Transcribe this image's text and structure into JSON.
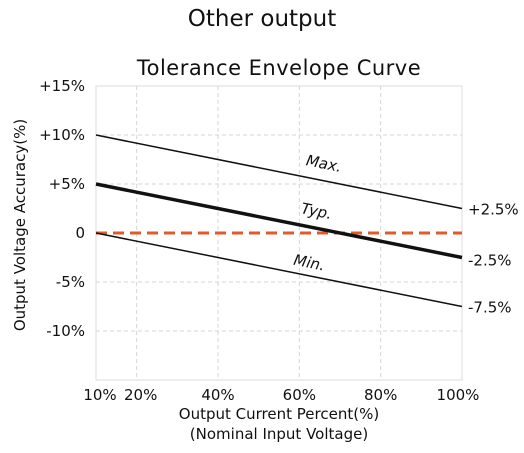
{
  "header": {
    "title": "Other output"
  },
  "chart_data": {
    "type": "line",
    "title": "Tolerance Envelope Curve",
    "xlabel": "Output Current Percent(%)",
    "xlabel2": "(Nominal Input Voltage)",
    "ylabel": "Output Voltage Accuracy(%)",
    "xlim": [
      10,
      100
    ],
    "ylim": [
      -15,
      15
    ],
    "x_ticks": [
      10,
      20,
      40,
      60,
      80,
      100
    ],
    "x_tick_labels": [
      "10%",
      "20%",
      "40%",
      "60%",
      "80%",
      "100%"
    ],
    "y_ticks": [
      15,
      10,
      5,
      0,
      -5,
      -10
    ],
    "y_tick_labels": [
      "+15%",
      "+10%",
      "+5%",
      "0",
      "-5%",
      "-10%"
    ],
    "grid": true,
    "series": [
      {
        "name": "Max.",
        "x": [
          10,
          100
        ],
        "y": [
          10,
          2.5
        ],
        "end_label": "+2.5%",
        "color": "#111111",
        "weight": "thin"
      },
      {
        "name": "Typ.",
        "x": [
          10,
          100
        ],
        "y": [
          5,
          -2.5
        ],
        "end_label": "-2.5%",
        "color": "#111111",
        "weight": "bold"
      },
      {
        "name": "Min.",
        "x": [
          10,
          100
        ],
        "y": [
          0,
          -7.5
        ],
        "end_label": "-7.5%",
        "color": "#111111",
        "weight": "thin"
      }
    ],
    "reference_line": {
      "y": 0,
      "color": "#e05a2b",
      "style": "dashed"
    }
  }
}
